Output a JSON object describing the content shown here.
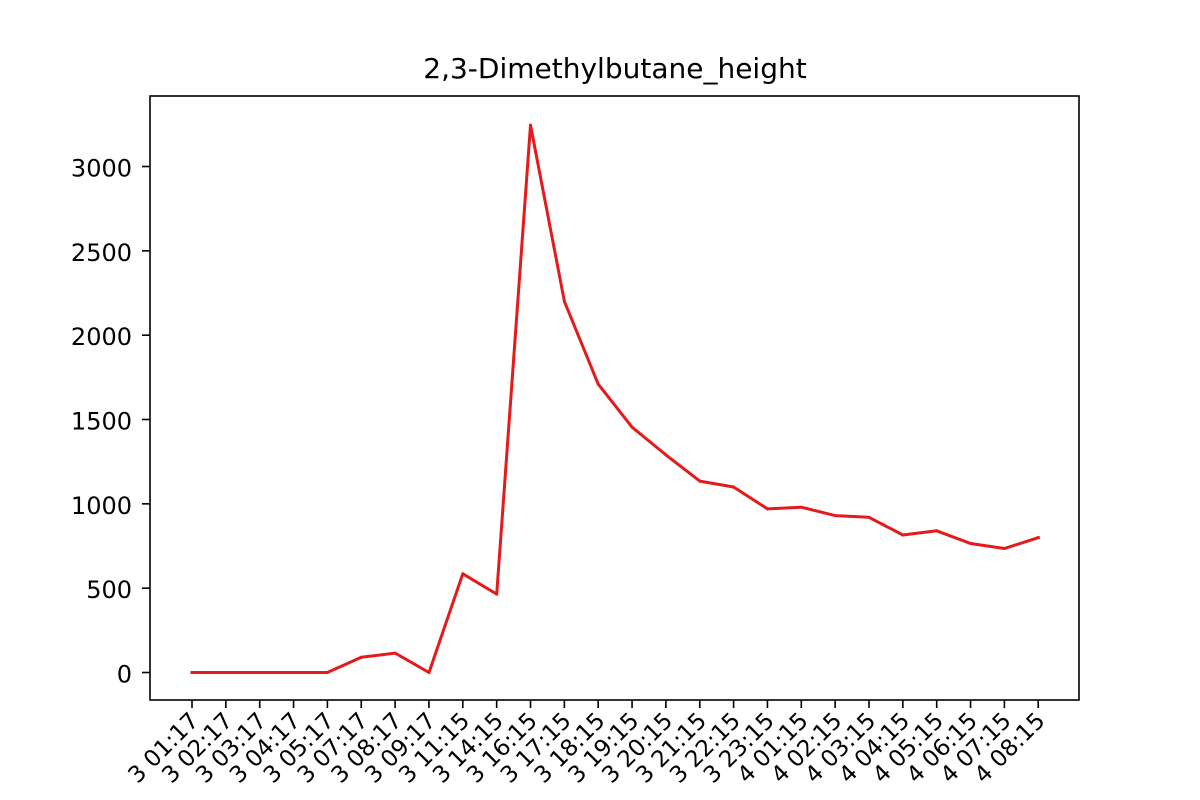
{
  "chart_data": {
    "type": "line",
    "title": "2,3-Dimethylbutane_height",
    "xlabel": "",
    "ylabel": "",
    "grid": false,
    "legend": "none",
    "ylim": [
      -160,
      3400
    ],
    "yticks": [
      0,
      500,
      1000,
      1500,
      2000,
      2500,
      3000
    ],
    "categories": [
      "3 01:17",
      "3 02:17",
      "3 03:17",
      "3 04:17",
      "3 05:17",
      "3 07:17",
      "3 08:17",
      "3 09:17",
      "3 11:15",
      "3 14:15",
      "3 16:15",
      "3 17:15",
      "3 18:15",
      "3 19:15",
      "3 20:15",
      "3 21:15",
      "3 22:15",
      "3 23:15",
      "4 01:15",
      "4 02:15",
      "4 03:15",
      "4 04:15",
      "4 05:15",
      "4 06:15",
      "4 07:15",
      "4 08:15"
    ],
    "series": [
      {
        "name": "2,3-Dimethylbutane_height",
        "color": "#e41a1c",
        "values": [
          0,
          0,
          0,
          0,
          0,
          90,
          115,
          0,
          585,
          465,
          3245,
          2200,
          1710,
          1455,
          1290,
          1135,
          1100,
          970,
          980,
          930,
          920,
          815,
          840,
          765,
          735,
          800
        ]
      }
    ]
  }
}
